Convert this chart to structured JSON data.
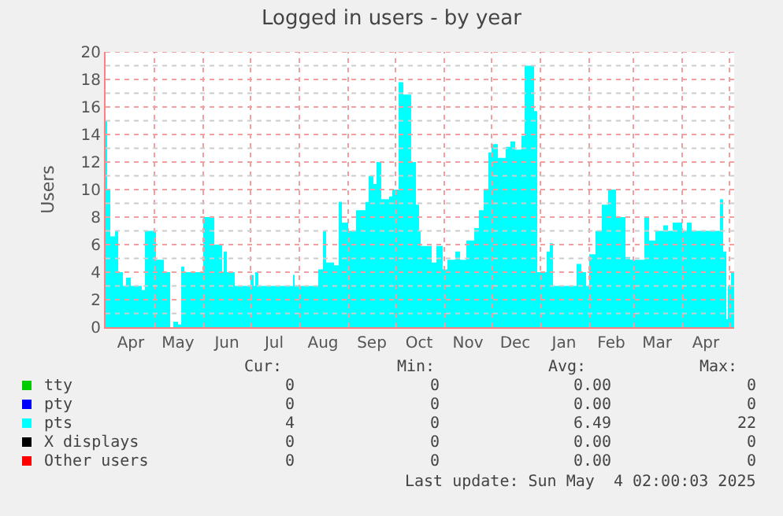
{
  "chart_data": {
    "type": "area",
    "title": "Logged in users - by year",
    "ylabel": "Users",
    "xlim": [
      "2024-03-31",
      "2025-05-04"
    ],
    "xticks": [
      {
        "value": "2024-04-16",
        "label": "Apr"
      },
      {
        "value": "2024-05-01",
        "label": null
      },
      {
        "value": "2024-05-16",
        "label": "May"
      },
      {
        "value": "2024-06-01",
        "label": null
      },
      {
        "value": "2024-06-16",
        "label": "Jun"
      },
      {
        "value": "2024-07-01",
        "label": null
      },
      {
        "value": "2024-07-16",
        "label": "Jul"
      },
      {
        "value": "2024-08-01",
        "label": null
      },
      {
        "value": "2024-08-16",
        "label": "Aug"
      },
      {
        "value": "2024-09-01",
        "label": null
      },
      {
        "value": "2024-09-16",
        "label": "Sep"
      },
      {
        "value": "2024-10-01",
        "label": null
      },
      {
        "value": "2024-10-16",
        "label": "Oct"
      },
      {
        "value": "2024-11-01",
        "label": null
      },
      {
        "value": "2024-11-16",
        "label": "Nov"
      },
      {
        "value": "2024-12-01",
        "label": null
      },
      {
        "value": "2024-12-16",
        "label": "Dec"
      },
      {
        "value": "2025-01-01",
        "label": null
      },
      {
        "value": "2025-01-16",
        "label": "Jan"
      },
      {
        "value": "2025-02-01",
        "label": null
      },
      {
        "value": "2025-02-15",
        "label": "Feb"
      },
      {
        "value": "2025-03-01",
        "label": null
      },
      {
        "value": "2025-03-16",
        "label": "Mar"
      },
      {
        "value": "2025-04-01",
        "label": null
      },
      {
        "value": "2025-04-16",
        "label": "Apr"
      },
      {
        "value": "2025-05-01",
        "label": null
      }
    ],
    "ylim": [
      0,
      20
    ],
    "yticks": [
      0,
      2,
      4,
      6,
      8,
      10,
      12,
      14,
      16,
      18,
      20
    ],
    "grid": true,
    "legend": "bottom left",
    "series": [
      {
        "name": "tty",
        "color": "#00cc00"
      },
      {
        "name": "pty",
        "color": "#0000ff"
      },
      {
        "name": "pts",
        "color": "#00ffff",
        "x": [
          "2024-03-31",
          "2024-04-01",
          "2024-04-03",
          "2024-04-06",
          "2024-04-08",
          "2024-04-11",
          "2024-04-13",
          "2024-04-16",
          "2024-04-21",
          "2024-04-23",
          "2024-04-25",
          "2024-04-30",
          "2024-05-02",
          "2024-05-05",
          "2024-05-07",
          "2024-05-10",
          "2024-05-11",
          "2024-05-13",
          "2024-05-16",
          "2024-05-18",
          "2024-05-20",
          "2024-05-30",
          "2024-06-01",
          "2024-06-05",
          "2024-06-08",
          "2024-06-11",
          "2024-06-13",
          "2024-06-14",
          "2024-06-16",
          "2024-06-19",
          "2024-06-21",
          "2024-06-29",
          "2024-07-01",
          "2024-07-03",
          "2024-07-04",
          "2024-07-06",
          "2024-07-23",
          "2024-07-28",
          "2024-07-29",
          "2024-08-12",
          "2024-08-13",
          "2024-08-16",
          "2024-08-18",
          "2024-08-23",
          "2024-08-26",
          "2024-08-28",
          "2024-09-01",
          "2024-09-04",
          "2024-09-06",
          "2024-09-12",
          "2024-09-14",
          "2024-09-17",
          "2024-09-19",
          "2024-09-22",
          "2024-09-27",
          "2024-09-29",
          "2024-10-03",
          "2024-10-06",
          "2024-10-07",
          "2024-10-11",
          "2024-10-14",
          "2024-10-16",
          "2024-10-17",
          "2024-10-21",
          "2024-10-24",
          "2024-10-27",
          "2024-10-30",
          "2024-10-31",
          "2024-11-03",
          "2024-11-08",
          "2024-11-11",
          "2024-11-15",
          "2024-11-20",
          "2024-11-23",
          "2024-11-26",
          "2024-11-29",
          "2024-12-01",
          "2024-12-05",
          "2024-12-10",
          "2024-12-13",
          "2024-12-16",
          "2024-12-20",
          "2024-12-22",
          "2024-12-25",
          "2024-12-28",
          "2024-12-30",
          "2025-01-02",
          "2025-01-05",
          "2025-01-07",
          "2025-01-09",
          "2025-01-20",
          "2025-01-24",
          "2025-01-27",
          "2025-01-30",
          "2025-02-01",
          "2025-02-05",
          "2025-02-09",
          "2025-02-13",
          "2025-02-18",
          "2025-02-21",
          "2025-02-24",
          "2025-02-27",
          "2025-03-05",
          "2025-03-08",
          "2025-03-11",
          "2025-03-15",
          "2025-03-20",
          "2025-03-23",
          "2025-03-26",
          "2025-04-01",
          "2025-04-04",
          "2025-04-07",
          "2025-04-24",
          "2025-04-25",
          "2025-04-27",
          "2025-04-29",
          "2025-04-30",
          "2025-05-02",
          "2025-05-04"
        ],
        "values": [
          15.0,
          10,
          6.6,
          7,
          4,
          3,
          3.6,
          3,
          3,
          2.7,
          7,
          7,
          4.9,
          4.9,
          4,
          4,
          0,
          0.4,
          0.2,
          4.4,
          4,
          4,
          8,
          8,
          6,
          6,
          4,
          5.5,
          4,
          4,
          3,
          3,
          3.8,
          3,
          4,
          3,
          3,
          3.8,
          3,
          3,
          4.2,
          7,
          4.7,
          4.5,
          9.1,
          7.6,
          7,
          7,
          8.5,
          9.1,
          11,
          10.4,
          12,
          9.3,
          9.5,
          10,
          17.8,
          16.9,
          16.9,
          12,
          8.9,
          7,
          5.9,
          5.9,
          4.7,
          5.9,
          5.9,
          4.2,
          4.9,
          5.5,
          4.9,
          6.3,
          7.2,
          8.5,
          10,
          12.7,
          13.3,
          12.3,
          13.1,
          13.5,
          12.9,
          13.9,
          19,
          19,
          15.7,
          4,
          4,
          5.5,
          6.1,
          3,
          3,
          4.6,
          4,
          3,
          5.3,
          7,
          8.9,
          10,
          8,
          8,
          5.1,
          4.9,
          4.9,
          8,
          6.3,
          7,
          7.4,
          7,
          7.6,
          7,
          7.6,
          7,
          7,
          9.3,
          5.5,
          0.6,
          3,
          4,
          3.8
        ]
      },
      {
        "name": "X displays",
        "color": "#000000"
      },
      {
        "name": "Other users",
        "color": "#ff0000"
      }
    ],
    "annotations": [
      "Cur:",
      "Min:",
      "Avg:",
      "Max:",
      "0",
      "0",
      "0.00",
      "0",
      "0",
      "0",
      "0.00",
      "0",
      "4",
      "0",
      "6.49",
      "22",
      "0",
      "0",
      "0.00",
      "0",
      "0",
      "0",
      "0.00",
      "0",
      "Last update: Sun May  4 02:00:03 2025"
    ]
  }
}
